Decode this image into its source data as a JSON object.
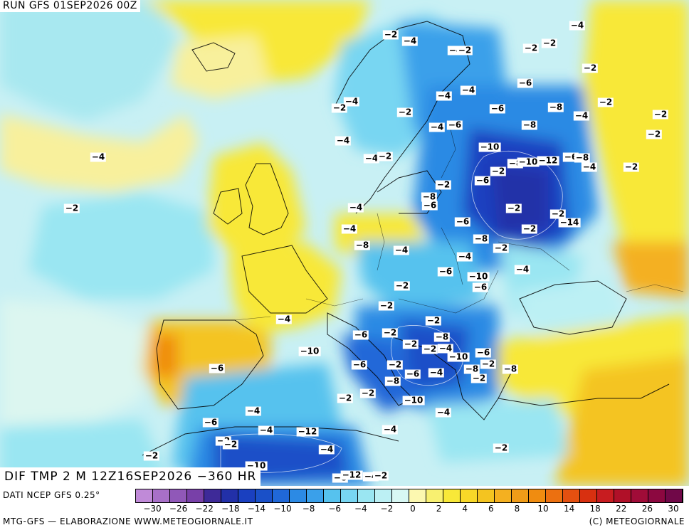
{
  "header": {
    "run_label": "RUN GFS 01SEP2026 00Z"
  },
  "map": {
    "field_label": "DIF TMP 2 M 12Z16SEP2026 −360 HR",
    "colors": {
      "sea_light": "#c8f0f4",
      "atlantic_pale": "#dcf6f0",
      "warm_yellow": "#f8e838",
      "pale_yellow": "#f8f09c",
      "orange": "#f4b020",
      "deep_orange": "#f08c10",
      "cyan_light": "#9ae6f2",
      "blue_light": "#56c2ee",
      "blue_mid": "#2c8ae4",
      "blue_dark": "#1a50c8",
      "blue_deep": "#2230a8"
    },
    "anomaly_labels": [
      "-4",
      "-2",
      "-4",
      "-2",
      "-2",
      "-4",
      "-2",
      "-2",
      "-4",
      "-2",
      "-6",
      "-4",
      "-4",
      "-2",
      "-2",
      "-2",
      "-2",
      "-8",
      "-6",
      "-8",
      "-4",
      "-4",
      "-4",
      "-6",
      "-10",
      "-2",
      "-4",
      "-4",
      "-2",
      "-8",
      "-10",
      "-12",
      "-6",
      "-8",
      "-4",
      "-2",
      "-2",
      "-6",
      "-8",
      "-6",
      "-2",
      "-4",
      "-2",
      "-2",
      "-14",
      "-4",
      "-6",
      "-2",
      "-8",
      "-8",
      "-2",
      "-4",
      "-4",
      "-6",
      "-10",
      "-4",
      "-6",
      "-2",
      "-2",
      "-4",
      "-2",
      "-6",
      "-2",
      "-2",
      "-2",
      "-8",
      "-4",
      "-10",
      "-6",
      "-8",
      "-2",
      "-8",
      "-10",
      "-6",
      "-6",
      "-2",
      "-4",
      "-6",
      "-8",
      "-2",
      "-2",
      "-2",
      "-10",
      "-4",
      "-4",
      "-6",
      "-4",
      "-4",
      "-12",
      "-2",
      "-2",
      "-2",
      "-4",
      "-2",
      "-10",
      "-4",
      "-8",
      "-12",
      "-2",
      "-2",
      "-12",
      "-6",
      "-4"
    ]
  },
  "footer": {
    "source_label": "DATI NCEP GFS 0.25°",
    "credit_label": "MTG-GFS — ELABORAZIONE WWW.METEOGIORNALE.IT",
    "copyright_label": "(C) METEOGIORNALE",
    "colorbar": {
      "colors": [
        "#c08ad8",
        "#a870c8",
        "#9058b8",
        "#7840a8",
        "#3e2a98",
        "#2230a8",
        "#1a40c0",
        "#1a50c8",
        "#2068d8",
        "#2c8ae4",
        "#3aa0ea",
        "#56c2ee",
        "#78d6f2",
        "#9ae6f2",
        "#bcf0f4",
        "#d8f8f4",
        "#fcf8b0",
        "#f8f070",
        "#f8e838",
        "#f8d828",
        "#f4c420",
        "#f4b020",
        "#f09c18",
        "#f08c10",
        "#ec7010",
        "#e45010",
        "#d83010",
        "#c81c20",
        "#b01028",
        "#a00c38",
        "#8c0840",
        "#700848"
      ],
      "tick_labels": [
        "−30",
        "−26",
        "−22",
        "−18",
        "−14",
        "−10",
        "−8",
        "−6",
        "−4",
        "−2",
        "0",
        "2",
        "4",
        "6",
        "8",
        "10",
        "14",
        "18",
        "22",
        "26",
        "30"
      ]
    }
  }
}
